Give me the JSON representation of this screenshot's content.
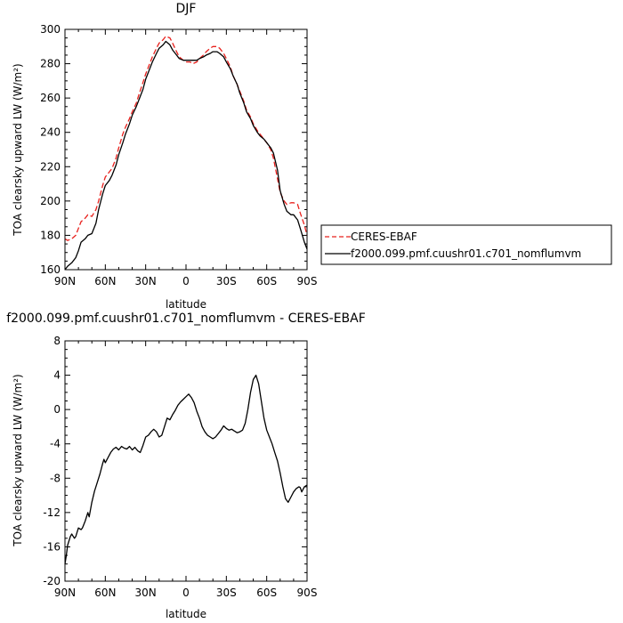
{
  "chart_data": [
    {
      "type": "line",
      "title": "DJF",
      "xlabel": "latitude",
      "ylabel": "TOA clearsky upward LW (W/m²)",
      "xlim": [
        -90,
        90
      ],
      "ylim": [
        160,
        300
      ],
      "xticks": [
        -90,
        -60,
        -30,
        0,
        30,
        60,
        90
      ],
      "xtick_labels": [
        "90N",
        "60N",
        "30N",
        "0",
        "30S",
        "60S",
        "90S"
      ],
      "yticks": [
        160,
        180,
        200,
        220,
        240,
        260,
        280,
        300
      ],
      "ytick_labels": [
        "160",
        "180",
        "200",
        "220",
        "240",
        "260",
        "280",
        "300"
      ],
      "grid": false,
      "legend_position": "right",
      "series": [
        {
          "name": "CERES-EBAF",
          "color": "#e8201c",
          "dash": "dashed",
          "x": [
            -90,
            -88,
            -85,
            -82,
            -80,
            -78,
            -75,
            -73,
            -70,
            -67,
            -65,
            -62,
            -60,
            -57,
            -55,
            -52,
            -50,
            -47,
            -45,
            -42,
            -40,
            -37,
            -35,
            -32,
            -30,
            -27,
            -25,
            -22,
            -20,
            -17,
            -15,
            -12,
            -10,
            -7,
            -5,
            -2,
            0,
            3,
            5,
            8,
            10,
            13,
            15,
            18,
            20,
            23,
            25,
            28,
            30,
            33,
            35,
            38,
            40,
            43,
            45,
            48,
            50,
            53,
            55,
            58,
            60,
            63,
            65,
            68,
            70,
            73,
            75,
            78,
            80,
            83,
            85,
            88,
            90
          ],
          "values": [
            178,
            177,
            178,
            180,
            184,
            188,
            190,
            192,
            191,
            195,
            200,
            209,
            214,
            217,
            219,
            225,
            231,
            239,
            243,
            248,
            252,
            257,
            262,
            269,
            274,
            280,
            284,
            289,
            292,
            294,
            296,
            295,
            292,
            287,
            284,
            282,
            281,
            281,
            280,
            281,
            283,
            285,
            287,
            289,
            290,
            290,
            289,
            286,
            283,
            278,
            273,
            268,
            264,
            258,
            253,
            249,
            245,
            241,
            239,
            236,
            234,
            230,
            225,
            213,
            205,
            200,
            198,
            199,
            199,
            198,
            193,
            186,
            180
          ]
        },
        {
          "name": "f2000.099.pmf.cuushr01.c701_nomflumvm",
          "color": "#000000",
          "dash": "solid",
          "x": [
            -90,
            -88,
            -85,
            -82,
            -80,
            -78,
            -75,
            -73,
            -70,
            -67,
            -65,
            -62,
            -60,
            -57,
            -55,
            -52,
            -50,
            -47,
            -45,
            -42,
            -40,
            -37,
            -35,
            -32,
            -30,
            -27,
            -25,
            -22,
            -20,
            -17,
            -15,
            -12,
            -10,
            -7,
            -5,
            -2,
            0,
            3,
            5,
            8,
            10,
            13,
            15,
            18,
            20,
            23,
            25,
            28,
            30,
            33,
            35,
            38,
            40,
            43,
            45,
            48,
            50,
            53,
            55,
            58,
            60,
            63,
            65,
            68,
            70,
            73,
            75,
            78,
            80,
            83,
            85,
            88,
            90
          ],
          "values": [
            160,
            162,
            164,
            167,
            171,
            176,
            178,
            180,
            181,
            187,
            195,
            204,
            209,
            212,
            215,
            221,
            227,
            234,
            239,
            245,
            250,
            255,
            259,
            265,
            271,
            277,
            281,
            286,
            289,
            291,
            293,
            291,
            288,
            285,
            283,
            282,
            282,
            282,
            282,
            282,
            283,
            284,
            285,
            286,
            287,
            287,
            286,
            284,
            281,
            277,
            273,
            268,
            263,
            257,
            252,
            248,
            244,
            240,
            238,
            236,
            234,
            231,
            228,
            218,
            206,
            198,
            194,
            192,
            192,
            189,
            184,
            176,
            172
          ]
        }
      ]
    },
    {
      "type": "line",
      "title": "f2000.099.pmf.cuushr01.c701_nomflumvm - CERES-EBAF",
      "xlabel": "latitude",
      "ylabel": "TOA clearsky upward LW (W/m²)",
      "xlim": [
        -90,
        90
      ],
      "ylim": [
        -20,
        8
      ],
      "xticks": [
        -90,
        -60,
        -30,
        0,
        30,
        60,
        90
      ],
      "xtick_labels": [
        "90N",
        "60N",
        "30N",
        "0",
        "30S",
        "60S",
        "90S"
      ],
      "yticks": [
        -20,
        -16,
        -12,
        -8,
        -4,
        0,
        4,
        8
      ],
      "ytick_labels": [
        "-20",
        "-16",
        "-12",
        "-8",
        "-4",
        "0",
        "4",
        "8"
      ],
      "grid": false,
      "series": [
        {
          "color": "#000000",
          "dash": "solid",
          "x": [
            -90,
            -89,
            -88,
            -86,
            -85,
            -83,
            -82,
            -80,
            -78,
            -77,
            -75,
            -73,
            -72,
            -70,
            -68,
            -66,
            -64,
            -62,
            -61,
            -60,
            -58,
            -56,
            -54,
            -52,
            -50,
            -48,
            -46,
            -44,
            -42,
            -40,
            -38,
            -36,
            -34,
            -32,
            -30,
            -28,
            -26,
            -24,
            -22,
            -20,
            -18,
            -16,
            -14,
            -12,
            -10,
            -8,
            -6,
            -4,
            -2,
            0,
            2,
            4,
            6,
            8,
            10,
            12,
            14,
            16,
            18,
            20,
            22,
            24,
            26,
            28,
            30,
            32,
            34,
            36,
            38,
            40,
            42,
            44,
            46,
            48,
            50,
            52,
            54,
            56,
            58,
            60,
            62,
            64,
            66,
            68,
            70,
            72,
            74,
            76,
            78,
            80,
            82,
            84,
            85,
            86,
            88,
            90
          ],
          "values": [
            -18.0,
            -17.0,
            -15.8,
            -14.8,
            -14.5,
            -15.0,
            -14.8,
            -13.8,
            -14.0,
            -13.8,
            -13.0,
            -12.0,
            -12.5,
            -10.8,
            -9.5,
            -8.5,
            -7.5,
            -6.3,
            -5.8,
            -6.2,
            -5.6,
            -5.0,
            -4.6,
            -4.4,
            -4.7,
            -4.3,
            -4.5,
            -4.6,
            -4.3,
            -4.7,
            -4.4,
            -4.8,
            -5.0,
            -4.2,
            -3.2,
            -3.0,
            -2.6,
            -2.3,
            -2.6,
            -3.2,
            -3.0,
            -2.0,
            -1.0,
            -1.2,
            -0.6,
            -0.1,
            0.5,
            0.9,
            1.2,
            1.5,
            1.8,
            1.4,
            0.8,
            -0.2,
            -1.0,
            -2.0,
            -2.6,
            -3.0,
            -3.2,
            -3.4,
            -3.2,
            -2.8,
            -2.4,
            -1.9,
            -2.2,
            -2.4,
            -2.3,
            -2.5,
            -2.7,
            -2.6,
            -2.4,
            -1.6,
            0.0,
            2.0,
            3.5,
            4.0,
            3.0,
            1.0,
            -1.0,
            -2.4,
            -3.2,
            -4.0,
            -5.0,
            -6.0,
            -7.4,
            -9.0,
            -10.4,
            -10.8,
            -10.2,
            -9.6,
            -9.2,
            -9.0,
            -9.1,
            -9.6,
            -9.0,
            -8.8
          ]
        }
      ]
    }
  ]
}
